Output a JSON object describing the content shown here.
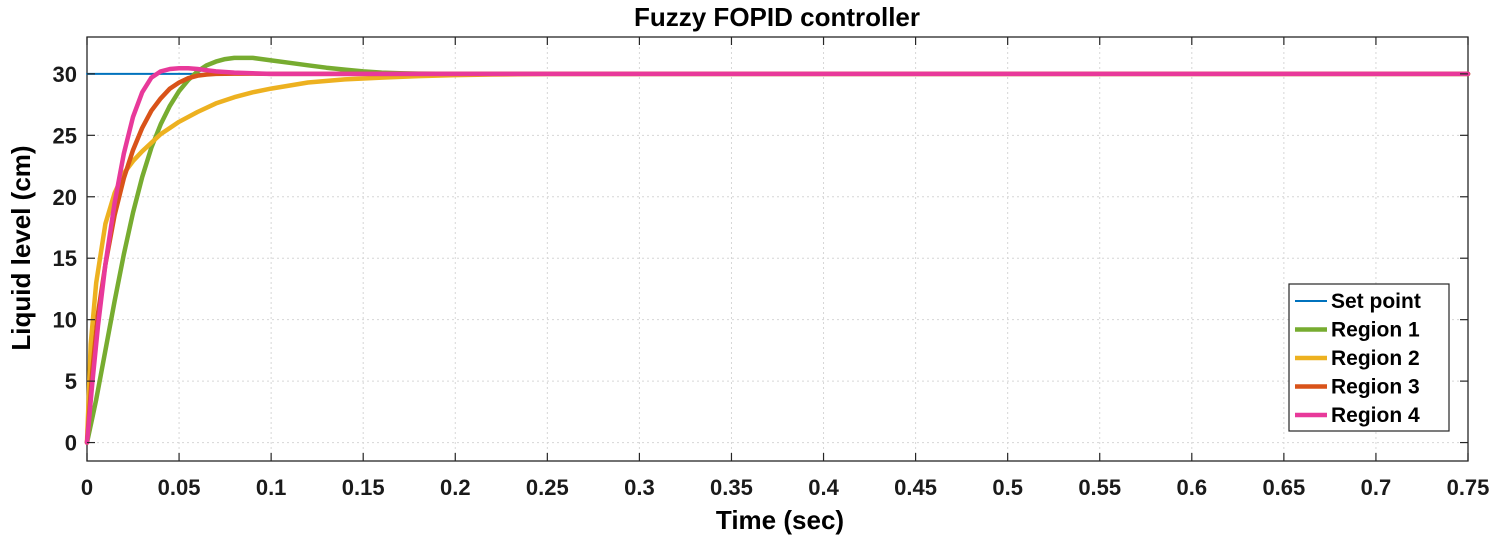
{
  "chart_data": {
    "type": "line",
    "title": "Fuzzy FOPID controller",
    "xlabel": "Time (sec)",
    "ylabel": "Liquid level (cm)",
    "xlim": [
      0,
      0.75
    ],
    "ylim": [
      -1.5,
      33
    ],
    "xticks": [
      0,
      0.05,
      0.1,
      0.15,
      0.2,
      0.25,
      0.3,
      0.35,
      0.4,
      0.45,
      0.5,
      0.55,
      0.6,
      0.65,
      0.7,
      0.75
    ],
    "xtick_labels": [
      "0",
      "0.05",
      "0.1",
      "0.15",
      "0.2",
      "0.25",
      "0.3",
      "0.35",
      "0.4",
      "0.45",
      "0.5",
      "0.55",
      "0.6",
      "0.65",
      "0.7",
      "0.75"
    ],
    "yticks": [
      0,
      5,
      10,
      15,
      20,
      25,
      30
    ],
    "ytick_labels": [
      "0",
      "5",
      "10",
      "15",
      "20",
      "25",
      "30"
    ],
    "grid": true,
    "legend_position": "bottom-right",
    "series": [
      {
        "name": "Set point",
        "color": "#0072BD",
        "x": [
          0,
          0.75
        ],
        "y": [
          30,
          30
        ]
      },
      {
        "name": "Region 1",
        "color": "#77AC30",
        "x": [
          0,
          0.005,
          0.01,
          0.015,
          0.02,
          0.025,
          0.03,
          0.035,
          0.04,
          0.045,
          0.05,
          0.055,
          0.06,
          0.065,
          0.07,
          0.075,
          0.08,
          0.085,
          0.09,
          0.095,
          0.1,
          0.11,
          0.12,
          0.13,
          0.14,
          0.15,
          0.16,
          0.17,
          0.18,
          0.2,
          0.22,
          0.25,
          0.75
        ],
        "y": [
          0,
          3.5,
          7.5,
          11.5,
          15.3,
          18.7,
          21.6,
          24,
          25.9,
          27.4,
          28.6,
          29.5,
          30.2,
          30.7,
          31,
          31.2,
          31.3,
          31.3,
          31.3,
          31.2,
          31.1,
          30.9,
          30.7,
          30.5,
          30.35,
          30.2,
          30.1,
          30.05,
          30.02,
          30,
          30,
          30,
          30
        ]
      },
      {
        "name": "Region 2",
        "color": "#EDB120",
        "x": [
          0,
          0.002,
          0.005,
          0.01,
          0.015,
          0.02,
          0.025,
          0.03,
          0.04,
          0.05,
          0.06,
          0.07,
          0.08,
          0.09,
          0.1,
          0.12,
          0.14,
          0.16,
          0.18,
          0.2,
          0.22,
          0.25,
          0.3,
          0.75
        ],
        "y": [
          0,
          8,
          13,
          17.8,
          20.3,
          21.9,
          22.9,
          23.7,
          25.1,
          26.1,
          26.9,
          27.6,
          28.1,
          28.5,
          28.8,
          29.3,
          29.55,
          29.7,
          29.82,
          29.9,
          29.95,
          30,
          30,
          30
        ]
      },
      {
        "name": "Region 3",
        "color": "#D95319",
        "x": [
          0,
          0.003,
          0.006,
          0.01,
          0.015,
          0.02,
          0.025,
          0.03,
          0.035,
          0.04,
          0.045,
          0.05,
          0.055,
          0.06,
          0.065,
          0.07,
          0.08,
          0.09,
          0.1,
          0.12,
          0.15,
          0.75
        ],
        "y": [
          0,
          6,
          10.5,
          14.5,
          18.5,
          21.5,
          23.8,
          25.6,
          27,
          28,
          28.8,
          29.3,
          29.65,
          29.85,
          29.95,
          30,
          30.02,
          30.02,
          30,
          30,
          30,
          30
        ]
      },
      {
        "name": "Region 4",
        "color": "#E8399A",
        "x": [
          0,
          0.003,
          0.006,
          0.01,
          0.015,
          0.02,
          0.025,
          0.03,
          0.035,
          0.04,
          0.045,
          0.05,
          0.055,
          0.06,
          0.065,
          0.07,
          0.08,
          0.09,
          0.1,
          0.12,
          0.75
        ],
        "y": [
          0,
          5,
          9.5,
          14.5,
          19.5,
          23.5,
          26.5,
          28.5,
          29.7,
          30.2,
          30.4,
          30.45,
          30.45,
          30.4,
          30.3,
          30.2,
          30.1,
          30.05,
          30,
          30,
          30
        ]
      }
    ]
  }
}
